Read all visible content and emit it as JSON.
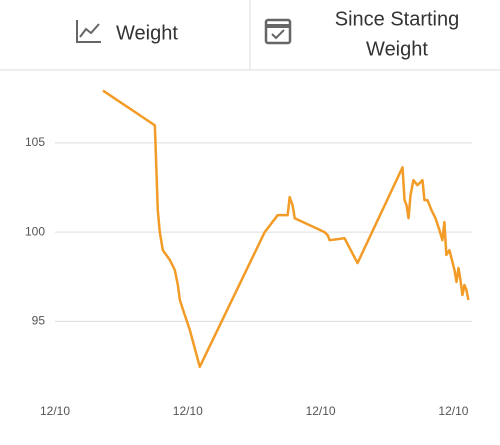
{
  "tabs": [
    {
      "label": "Weight"
    },
    {
      "label_lines": [
        "Since Starting",
        "Weight"
      ]
    }
  ],
  "chart_data": {
    "type": "line",
    "x": [
      0.361,
      0.752,
      0.774,
      0.789,
      0.812,
      0.865,
      0.902,
      0.925,
      0.94,
      0.977,
      1.015,
      1.09,
      1.579,
      1.677,
      1.752,
      1.767,
      1.789,
      1.805,
      2.03,
      2.053,
      2.068,
      2.18,
      2.278,
      2.617,
      2.632,
      2.647,
      2.662,
      2.677,
      2.699,
      2.729,
      2.744,
      2.767,
      2.782,
      2.805,
      2.835,
      2.865,
      2.895,
      2.917,
      2.932,
      2.947,
      2.97,
      3.008,
      3.023,
      3.038,
      3.053,
      3.068,
      3.083,
      3.098,
      3.113
    ],
    "series": [
      {
        "color": "#f29b26",
        "values": [
          107.93,
          105.98,
          101.23,
          100,
          98.99,
          98.44,
          97.88,
          97.04,
          96.2,
          95.36,
          94.53,
          92.46,
          100,
          100.95,
          100.95,
          101.96,
          101.51,
          100.78,
          100,
          99.83,
          99.55,
          99.66,
          98.27,
          103.63,
          101.79,
          101.51,
          100.78,
          102.07,
          102.91,
          102.63,
          102.74,
          102.91,
          101.79,
          101.79,
          101.23,
          100.78,
          100.11,
          99.55,
          100.56,
          98.72,
          98.99,
          97.88,
          97.21,
          97.99,
          97.32,
          96.48,
          97.04,
          96.76,
          96.2
        ]
      }
    ],
    "xlim": [
      0,
      3.14
    ],
    "xticks": [
      {
        "value": 0,
        "label": "12/10"
      },
      {
        "value": 1,
        "label": "12/10"
      },
      {
        "value": 2,
        "label": "12/10"
      },
      {
        "value": 3,
        "label": "12/10"
      }
    ],
    "ylim": [
      90.6,
      108.8
    ],
    "yticks": [
      95,
      100,
      105
    ],
    "grid": true
  }
}
